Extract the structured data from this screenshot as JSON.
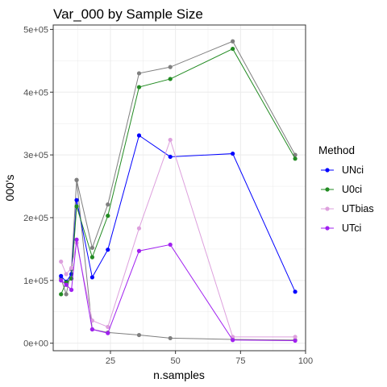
{
  "chart_data": {
    "type": "line",
    "title": "Var_000 by Sample Size",
    "xlabel": "n.samples",
    "ylabel": "000's",
    "xlim": [
      3,
      100
    ],
    "ylim": [
      -12000,
      507000
    ],
    "x_ticks": [
      25,
      50,
      75,
      100
    ],
    "x_tick_labels": [
      "25",
      "50",
      "75",
      "100"
    ],
    "y_ticks": [
      0,
      100000,
      200000,
      300000,
      400000,
      500000
    ],
    "y_tick_labels": [
      "0e+00",
      "1e+05",
      "2e+05",
      "3e+05",
      "4e+05",
      "5e+05"
    ],
    "grid": true,
    "legend_title": "Method",
    "legend_position": "right",
    "series": [
      {
        "name": "",
        "color": "#7f7f7f",
        "x": [
          6,
          8,
          10,
          12,
          18,
          24,
          36,
          48,
          72,
          96
        ],
        "y": [
          103000,
          78000,
          118000,
          260000,
          22000,
          17000,
          13000,
          8000,
          6000,
          5000
        ],
        "x2": [
          12,
          18,
          24,
          36,
          48,
          72,
          96
        ],
        "y2": [
          260000,
          152000,
          221000,
          430000,
          440000,
          481000,
          300000
        ]
      },
      {
        "name": "UNci",
        "color": "#0000ff",
        "x": [
          6,
          8,
          10,
          12,
          18,
          24,
          36,
          48,
          72,
          96
        ],
        "y": [
          107000,
          98000,
          110000,
          228000,
          105000,
          149000,
          331000,
          297000,
          302000,
          82000
        ]
      },
      {
        "name": "U0ci",
        "color": "#228b22",
        "x": [
          6,
          8,
          10,
          12,
          18,
          24,
          36,
          48,
          72,
          96
        ],
        "y": [
          78000,
          97000,
          103000,
          218000,
          137000,
          203000,
          408000,
          421000,
          469000,
          294000
        ]
      },
      {
        "name": "UTbias",
        "color": "#dda0dd",
        "x": [
          6,
          8,
          10,
          12,
          18,
          24,
          36,
          48,
          72,
          96
        ],
        "y": [
          130000,
          110000,
          120000,
          160000,
          36000,
          26000,
          183000,
          324000,
          10000,
          10000
        ]
      },
      {
        "name": "UTci",
        "color": "#a020f0",
        "x": [
          6,
          8,
          10,
          12,
          18,
          24,
          36,
          48,
          72,
          96
        ],
        "y": [
          100000,
          93000,
          85000,
          165000,
          22000,
          16000,
          147000,
          157000,
          5000,
          4000
        ]
      }
    ]
  }
}
